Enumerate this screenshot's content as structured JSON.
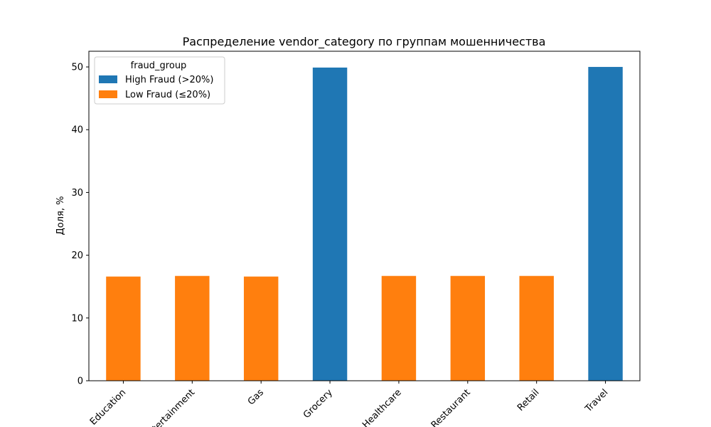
{
  "chart_data": {
    "type": "bar",
    "title": "Распределение vendor_category по группам мошенничества",
    "xlabel": "",
    "ylabel": "Доля, %",
    "ylim": [
      0,
      52.5
    ],
    "yticks": [
      0,
      10,
      20,
      30,
      40,
      50
    ],
    "grid": false,
    "legend_title": "fraud_group",
    "legend_position": "top-left",
    "categories": [
      "Education",
      "Entertainment",
      "Gas",
      "Grocery",
      "Healthcare",
      "Restaurant",
      "Retail",
      "Travel"
    ],
    "series": [
      {
        "name": "High Fraud (>20%)",
        "color": "#1f77b4",
        "values": [
          0,
          0,
          0,
          49.9,
          0,
          0,
          0,
          50.0
        ]
      },
      {
        "name": "Low Fraud (≤20%)",
        "color": "#ff7f0e",
        "values": [
          16.6,
          16.7,
          16.6,
          0,
          16.7,
          16.7,
          16.7,
          0
        ]
      }
    ]
  }
}
